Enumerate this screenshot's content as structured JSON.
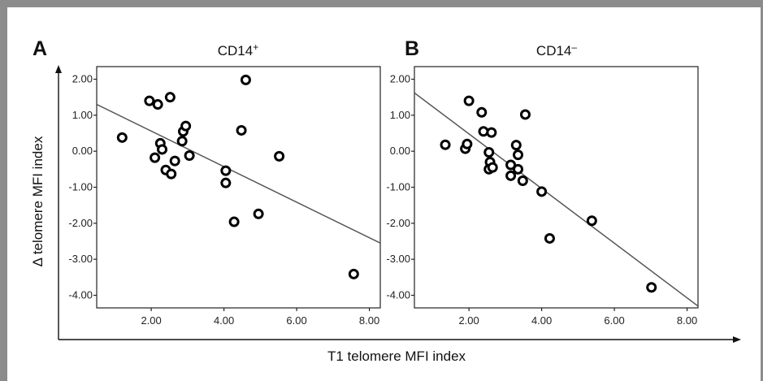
{
  "figure": {
    "ylabel": "Δ telomere MFI index",
    "xlabel": "T1 telomere MFI index"
  },
  "chart_data": [
    {
      "type": "scatter",
      "panel": "A",
      "title": "CD14",
      "title_sup": "+",
      "xlim": [
        0.5,
        8.3
      ],
      "ylim": [
        -4.35,
        2.35
      ],
      "xticks": [
        "2.00",
        "4.00",
        "6.00",
        "8.00"
      ],
      "yticks": [
        "2.00",
        "1.00",
        "0.00",
        "-1.00",
        "-2.00",
        "-3.00",
        "-4.00"
      ],
      "points": [
        {
          "x": 1.2,
          "y": 0.38
        },
        {
          "x": 1.95,
          "y": 1.4
        },
        {
          "x": 2.18,
          "y": 1.3
        },
        {
          "x": 2.52,
          "y": 1.5
        },
        {
          "x": 2.1,
          "y": -0.18
        },
        {
          "x": 2.25,
          "y": 0.22
        },
        {
          "x": 2.3,
          "y": 0.05
        },
        {
          "x": 2.4,
          "y": -0.52
        },
        {
          "x": 2.55,
          "y": -0.63
        },
        {
          "x": 2.65,
          "y": -0.27
        },
        {
          "x": 2.85,
          "y": 0.28
        },
        {
          "x": 2.88,
          "y": 0.55
        },
        {
          "x": 2.95,
          "y": 0.7
        },
        {
          "x": 3.05,
          "y": -0.12
        },
        {
          "x": 4.05,
          "y": -0.54
        },
        {
          "x": 4.05,
          "y": -0.88
        },
        {
          "x": 4.28,
          "y": -1.96
        },
        {
          "x": 4.48,
          "y": 0.58
        },
        {
          "x": 4.6,
          "y": 1.98
        },
        {
          "x": 4.95,
          "y": -1.74
        },
        {
          "x": 5.52,
          "y": -0.14
        },
        {
          "x": 7.57,
          "y": -3.41
        }
      ],
      "fit_line": {
        "x": [
          0.5,
          8.3
        ],
        "y": [
          1.3,
          -2.55
        ]
      }
    },
    {
      "type": "scatter",
      "panel": "B",
      "title": "CD14",
      "title_sup": "–",
      "xlim": [
        0.5,
        8.3
      ],
      "ylim": [
        -4.35,
        2.35
      ],
      "xticks": [
        "2.00",
        "4.00",
        "6.00",
        "8.00"
      ],
      "yticks": [
        "2.00",
        "1.00",
        "0.00",
        "-1.00",
        "-2.00",
        "-3.00",
        "-4.00"
      ],
      "points": [
        {
          "x": 1.35,
          "y": 0.18
        },
        {
          "x": 1.9,
          "y": 0.07
        },
        {
          "x": 1.95,
          "y": 0.2
        },
        {
          "x": 2.0,
          "y": 1.4
        },
        {
          "x": 2.35,
          "y": 1.08
        },
        {
          "x": 2.4,
          "y": 0.55
        },
        {
          "x": 2.62,
          "y": 0.52
        },
        {
          "x": 2.55,
          "y": -0.03
        },
        {
          "x": 2.58,
          "y": -0.3
        },
        {
          "x": 2.55,
          "y": -0.5
        },
        {
          "x": 2.65,
          "y": -0.45
        },
        {
          "x": 3.15,
          "y": -0.38
        },
        {
          "x": 3.15,
          "y": -0.68
        },
        {
          "x": 3.3,
          "y": 0.17
        },
        {
          "x": 3.35,
          "y": -0.1
        },
        {
          "x": 3.35,
          "y": -0.5
        },
        {
          "x": 3.48,
          "y": -0.82
        },
        {
          "x": 3.55,
          "y": 1.02
        },
        {
          "x": 4.0,
          "y": -1.12
        },
        {
          "x": 4.22,
          "y": -2.42
        },
        {
          "x": 5.38,
          "y": -1.93
        },
        {
          "x": 7.02,
          "y": -3.78
        }
      ],
      "fit_line": {
        "x": [
          0.5,
          8.3
        ],
        "y": [
          1.62,
          -4.3
        ]
      }
    }
  ]
}
